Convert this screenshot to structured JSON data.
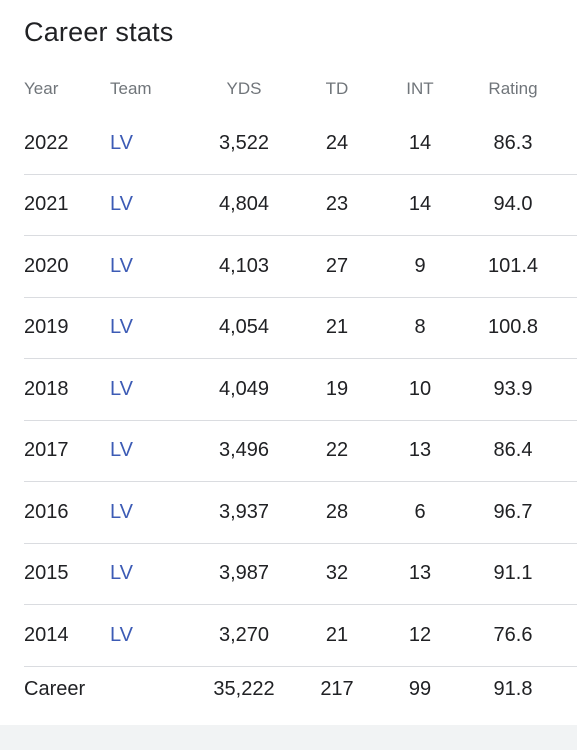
{
  "title": "Career stats",
  "columns": {
    "year": "Year",
    "team": "Team",
    "yds": "YDS",
    "td": "TD",
    "int": "INT",
    "rating": "Rating"
  },
  "rows": [
    {
      "year": "2022",
      "team": "LV",
      "yds": "3,522",
      "td": "24",
      "int": "14",
      "rating": "86.3"
    },
    {
      "year": "2021",
      "team": "LV",
      "yds": "4,804",
      "td": "23",
      "int": "14",
      "rating": "94.0"
    },
    {
      "year": "2020",
      "team": "LV",
      "yds": "4,103",
      "td": "27",
      "int": "9",
      "rating": "101.4"
    },
    {
      "year": "2019",
      "team": "LV",
      "yds": "4,054",
      "td": "21",
      "int": "8",
      "rating": "100.8"
    },
    {
      "year": "2018",
      "team": "LV",
      "yds": "4,049",
      "td": "19",
      "int": "10",
      "rating": "93.9"
    },
    {
      "year": "2017",
      "team": "LV",
      "yds": "3,496",
      "td": "22",
      "int": "13",
      "rating": "86.4"
    },
    {
      "year": "2016",
      "team": "LV",
      "yds": "3,937",
      "td": "28",
      "int": "6",
      "rating": "96.7"
    },
    {
      "year": "2015",
      "team": "LV",
      "yds": "3,987",
      "td": "32",
      "int": "13",
      "rating": "91.1"
    },
    {
      "year": "2014",
      "team": "LV",
      "yds": "3,270",
      "td": "21",
      "int": "12",
      "rating": "76.6"
    }
  ],
  "career": {
    "label": "Career",
    "yds": "35,222",
    "td": "217",
    "int": "99",
    "rating": "91.8"
  },
  "colors": {
    "link": "#3c5bb5",
    "text": "#202124",
    "header_text": "#70757a",
    "divider": "#dadce0"
  }
}
